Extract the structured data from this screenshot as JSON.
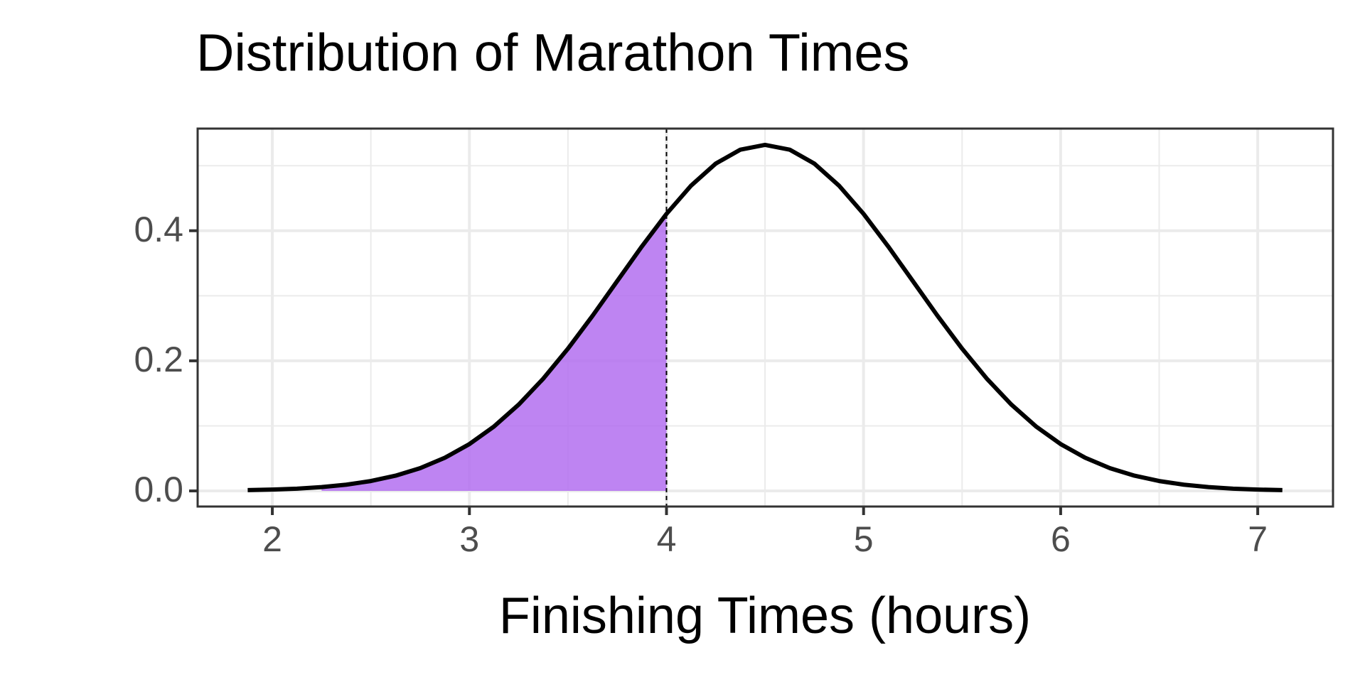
{
  "chart_data": {
    "type": "area-curve",
    "title": "Distribution of Marathon Times",
    "x_label": "Finishing Times (hours)",
    "x": [
      1.875,
      2.0,
      2.125,
      2.25,
      2.375,
      2.5,
      2.625,
      2.75,
      2.875,
      3.0,
      3.125,
      3.25,
      3.375,
      3.5,
      3.625,
      3.75,
      3.875,
      4.0,
      4.125,
      4.25,
      4.375,
      4.5,
      4.625,
      4.75,
      4.875,
      5.0,
      5.125,
      5.25,
      5.375,
      5.5,
      5.625,
      5.75,
      5.875,
      6.0,
      6.125,
      6.25,
      6.375,
      6.5,
      6.625,
      6.75,
      6.875,
      7.0,
      7.125
    ],
    "values": [
      0.0012,
      0.0021,
      0.0035,
      0.0059,
      0.0096,
      0.0152,
      0.0234,
      0.035,
      0.0509,
      0.072,
      0.0991,
      0.1327,
      0.1727,
      0.2187,
      0.2693,
      0.3226,
      0.3758,
      0.4259,
      0.4694,
      0.5032,
      0.5246,
      0.5319,
      0.5246,
      0.5032,
      0.4694,
      0.4259,
      0.3758,
      0.3226,
      0.2693,
      0.2187,
      0.1727,
      0.1327,
      0.0991,
      0.072,
      0.0509,
      0.035,
      0.0234,
      0.0152,
      0.0096,
      0.0059,
      0.0035,
      0.0021,
      0.0012
    ],
    "color": "#000000",
    "shade_range": [
      2.25,
      4
    ],
    "shade_color": "#b36ef0",
    "vline": 4,
    "xlim": [
      1.621,
      7.382
    ],
    "xticks": [
      2,
      3,
      4,
      5,
      6,
      7
    ],
    "ylim": [
      -0.024,
      0.557
    ],
    "yticks": [
      {
        "value": 0,
        "label": "0.0"
      },
      {
        "value": 0.2,
        "label": "0.2"
      },
      {
        "value": 0.4,
        "label": "0.4"
      }
    ],
    "grid": true
  }
}
